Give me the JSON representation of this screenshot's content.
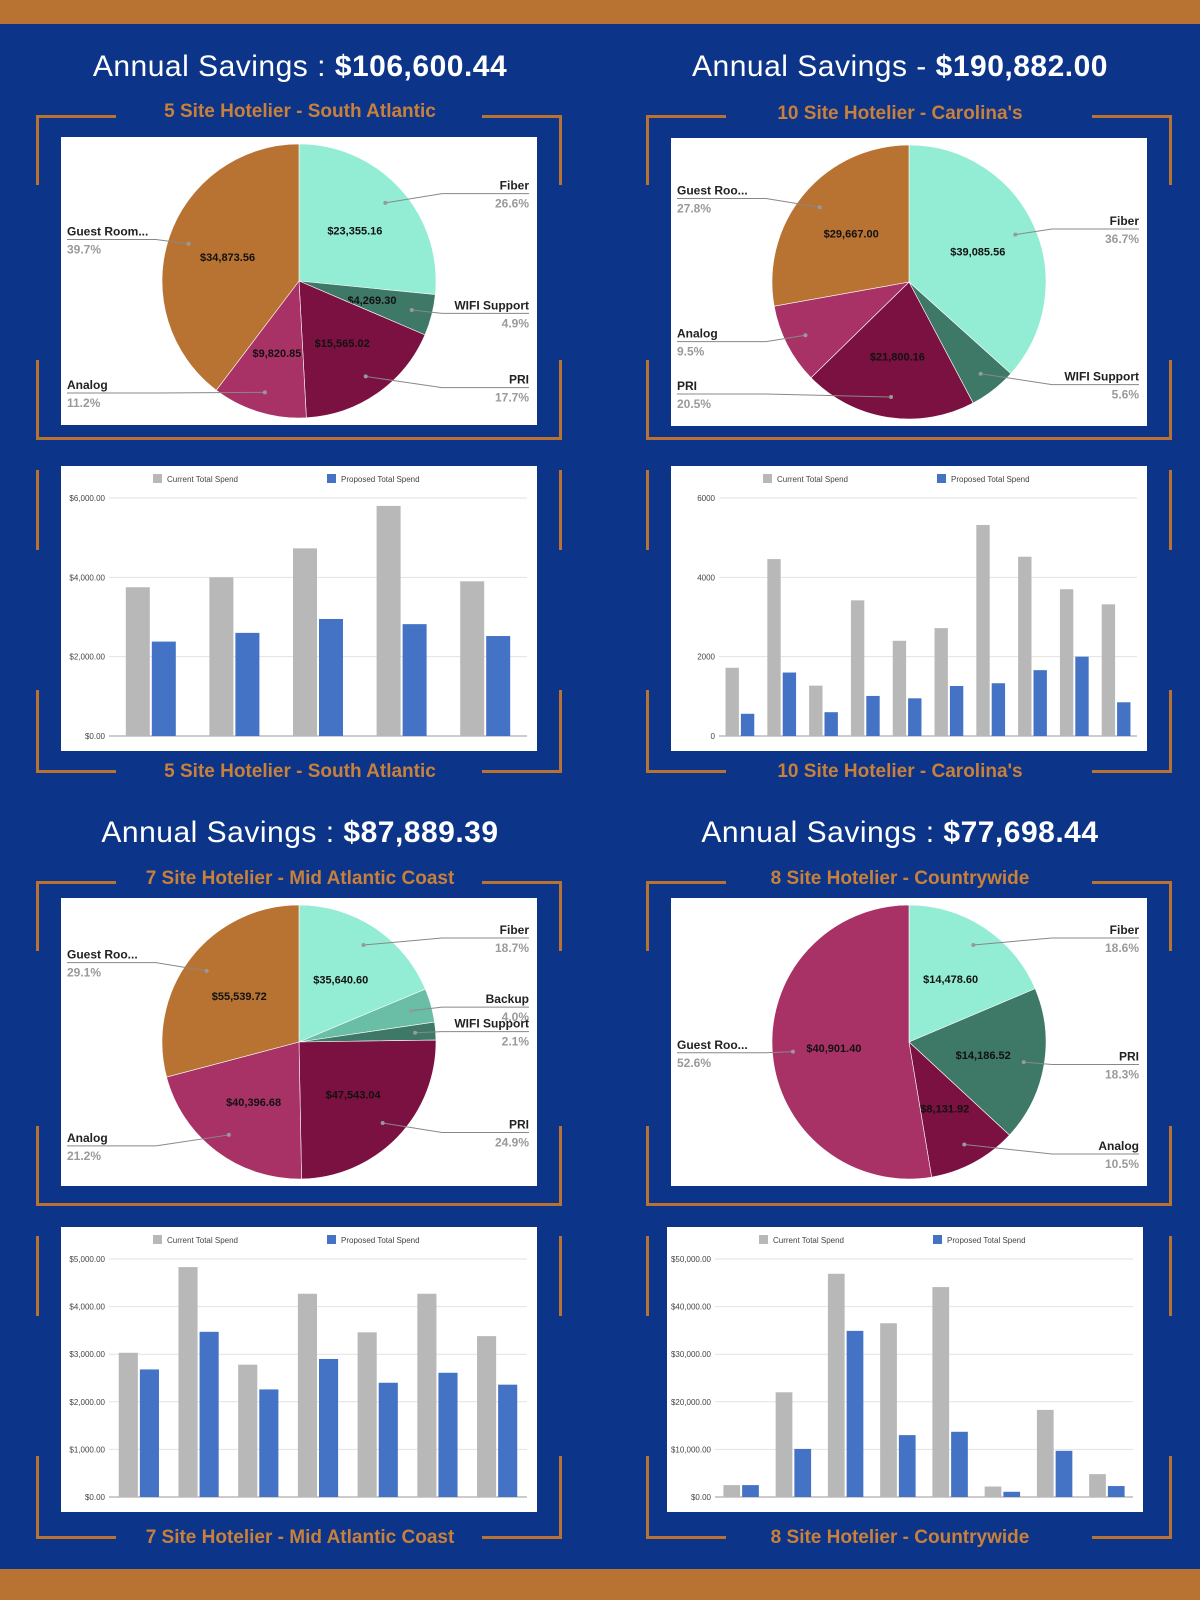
{
  "colors": {
    "background": "#0c3488",
    "accent": "#b87333",
    "current": "#b8b8b8",
    "proposed": "#4472c4"
  },
  "quadrants": [
    {
      "headline": {
        "prefix": "Annual Savings : ",
        "amount": "$106,600.44"
      },
      "frame_title": "5 Site Hotelier - South Atlantic",
      "frame_title_bottom": "5 Site Hotelier - South Atlantic"
    },
    {
      "headline": {
        "prefix": "Annual Savings - ",
        "amount": "$190,882.00"
      },
      "frame_title": "10 Site Hotelier - Carolina's",
      "frame_title_bottom": "10 Site Hotelier - Carolina's"
    },
    {
      "headline": {
        "prefix": "Annual Savings : ",
        "amount": "$87,889.39"
      },
      "frame_title": "7 Site Hotelier - Mid Atlantic Coast",
      "frame_title_bottom": "7 Site Hotelier - Mid Atlantic Coast"
    },
    {
      "headline": {
        "prefix": "Annual Savings : ",
        "amount": "$77,698.44"
      },
      "frame_title": "8 Site Hotelier - Countrywide",
      "frame_title_bottom": "8 Site Hotelier - Countrywide"
    }
  ],
  "chart_data": [
    {
      "type": "pie",
      "title": "",
      "slices": [
        {
          "label": "Fiber",
          "value": 23355.16,
          "value_label": "$23,355.16",
          "pct": "26.6%",
          "color": "#93ecd4"
        },
        {
          "label": "WIFI Support",
          "value": 4269.3,
          "value_label": "$4,269.30",
          "pct": "4.9%",
          "color": "#3e7866"
        },
        {
          "label": "PRI",
          "value": 15565.02,
          "value_label": "$15,565.02",
          "pct": "17.7%",
          "color": "#7b1141"
        },
        {
          "label": "Analog",
          "value": 9820.85,
          "value_label": "$9,820.85",
          "pct": "11.2%",
          "color": "#a83266"
        },
        {
          "label": "Guest Room...",
          "value": 34873.56,
          "value_label": "$34,873.56",
          "pct": "39.7%",
          "color": "#b87333"
        }
      ]
    },
    {
      "type": "pie",
      "title": "",
      "slices": [
        {
          "label": "Fiber",
          "value": 39085.56,
          "value_label": "$39,085.56",
          "pct": "36.7%",
          "color": "#93ecd4"
        },
        {
          "label": "WIFI Support",
          "value": 5960,
          "value_label": "",
          "pct": "5.6%",
          "color": "#3e7866"
        },
        {
          "label": "PRI",
          "value": 21800.16,
          "value_label": "$21,800.16",
          "pct": "20.5%",
          "color": "#7b1141"
        },
        {
          "label": "Analog",
          "value": 10120,
          "value_label": "",
          "pct": "9.5%",
          "color": "#a83266"
        },
        {
          "label": "Guest Roo...",
          "value": 29667.0,
          "value_label": "$29,667.00",
          "pct": "27.8%",
          "color": "#b87333"
        }
      ]
    },
    {
      "type": "pie",
      "title": "",
      "slices": [
        {
          "label": "Fiber",
          "value": 35640.6,
          "value_label": "$35,640.60",
          "pct": "18.7%",
          "color": "#93ecd4"
        },
        {
          "label": "Backup",
          "value": 7620,
          "value_label": "",
          "pct": "4.0%",
          "color": "#6abea6"
        },
        {
          "label": "WIFI Support",
          "value": 4000,
          "value_label": "",
          "pct": "2.1%",
          "color": "#3e7866"
        },
        {
          "label": "PRI",
          "value": 47543.04,
          "value_label": "$47,543.04",
          "pct": "24.9%",
          "color": "#7b1141"
        },
        {
          "label": "Analog",
          "value": 40396.68,
          "value_label": "$40,396.68",
          "pct": "21.2%",
          "color": "#a83266"
        },
        {
          "label": "Guest Roo...",
          "value": 55539.72,
          "value_label": "$55,539.72",
          "pct": "29.1%",
          "color": "#b87333"
        }
      ]
    },
    {
      "type": "pie",
      "title": "",
      "slices": [
        {
          "label": "Fiber",
          "value": 14478.6,
          "value_label": "$14,478.60",
          "pct": "18.6%",
          "color": "#93ecd4"
        },
        {
          "label": "PRI",
          "value": 14186.52,
          "value_label": "$14,186.52",
          "pct": "18.3%",
          "color": "#3e7866"
        },
        {
          "label": "Analog",
          "value": 8131.92,
          "value_label": "$8,131.92",
          "pct": "10.5%",
          "color": "#7b1141"
        },
        {
          "label": "Guest Roo...",
          "value": 40901.4,
          "value_label": "$40,901.40",
          "pct": "52.6%",
          "color": "#a83266"
        }
      ]
    },
    {
      "type": "bar",
      "title": "",
      "legend": "top",
      "ylim": [
        0,
        6000
      ],
      "yticks": [
        0,
        2000,
        4000,
        6000
      ],
      "ytick_labels": [
        "$0.00",
        "$2,000.00",
        "$4,000.00",
        "$6,000.00"
      ],
      "series": [
        {
          "name": "Current Total Spend",
          "values": [
            3750,
            4000,
            4730,
            5800,
            3900
          ]
        },
        {
          "name": "Proposed Total Spend",
          "values": [
            2380,
            2600,
            2950,
            2820,
            2520
          ]
        }
      ]
    },
    {
      "type": "bar",
      "title": "",
      "legend": "top",
      "ylim": [
        0,
        6000
      ],
      "yticks": [
        0,
        2000,
        4000,
        6000
      ],
      "ytick_labels": [
        "0",
        "2000",
        "4000",
        "6000"
      ],
      "series": [
        {
          "name": "Current Total Spend",
          "values": [
            1720,
            4460,
            1270,
            3420,
            2400,
            2720,
            5320,
            4520,
            3700,
            3320
          ]
        },
        {
          "name": "Proposed Total Spend",
          "values": [
            560,
            1600,
            600,
            1010,
            950,
            1260,
            1330,
            1660,
            2000,
            850
          ]
        }
      ]
    },
    {
      "type": "bar",
      "title": "",
      "legend": "top",
      "ylim": [
        0,
        5000
      ],
      "yticks": [
        0,
        1000,
        2000,
        3000,
        4000,
        5000
      ],
      "ytick_labels": [
        "$0.00",
        "$1,000.00",
        "$2,000.00",
        "$3,000.00",
        "$4,000.00",
        "$5,000.00"
      ],
      "series": [
        {
          "name": "Current Total Spend",
          "values": [
            3030,
            4830,
            2780,
            4270,
            3460,
            4270,
            3380
          ]
        },
        {
          "name": "Proposed Total Spend",
          "values": [
            2680,
            3470,
            2260,
            2900,
            2400,
            2610,
            2360
          ]
        }
      ]
    },
    {
      "type": "bar",
      "title": "",
      "legend": "top",
      "ylim": [
        0,
        50000
      ],
      "yticks": [
        0,
        10000,
        20000,
        30000,
        40000,
        50000
      ],
      "ytick_labels": [
        "$0.00",
        "$10,000.00",
        "$20,000.00",
        "$30,000.00",
        "$40,000.00",
        "$50,000.00"
      ],
      "series": [
        {
          "name": "Current Total Spend",
          "values": [
            2500,
            22000,
            46900,
            36500,
            44100,
            2200,
            18300,
            4800
          ]
        },
        {
          "name": "Proposed Total Spend",
          "values": [
            2500,
            10100,
            34900,
            13000,
            13700,
            1100,
            9700,
            2300
          ]
        }
      ]
    }
  ]
}
